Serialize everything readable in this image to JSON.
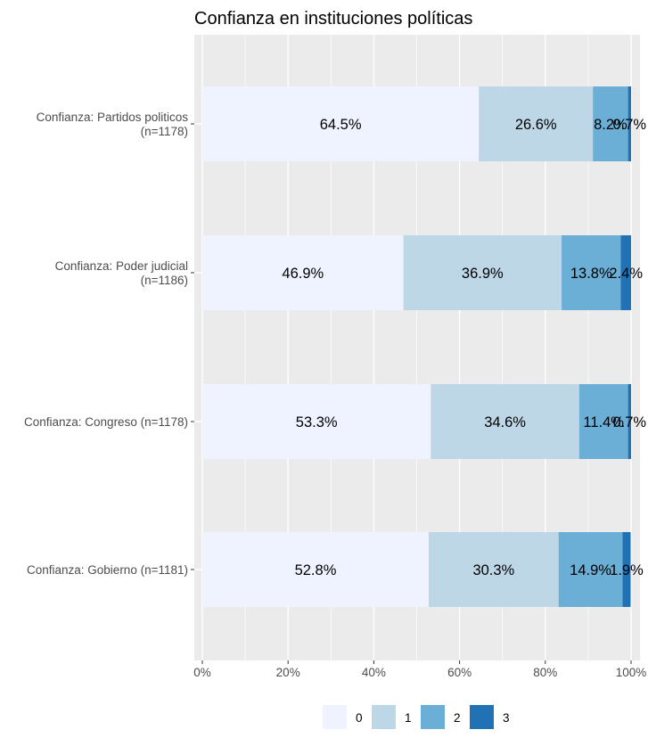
{
  "chart_data": {
    "type": "bar",
    "orientation": "horizontal",
    "stacked": true,
    "title": "Confianza en instituciones políticas",
    "xlabel": "",
    "ylabel": "",
    "xlim": [
      0,
      100
    ],
    "x_ticks": [
      "0%",
      "20%",
      "40%",
      "60%",
      "80%",
      "100%"
    ],
    "grid": true,
    "legend_position": "bottom",
    "categories": [
      [
        "Confianza: Partidos politicos",
        "(n=1178)"
      ],
      [
        "Confianza: Poder judicial",
        "(n=1186)"
      ],
      [
        "Confianza: Congreso (n=1178)"
      ],
      [
        "Confianza: Gobierno (n=1181)"
      ]
    ],
    "series": [
      {
        "name": "0",
        "color": "#eff3ff",
        "values": [
          64.5,
          46.9,
          53.3,
          52.8
        ],
        "labels": [
          "64.5%",
          "46.9%",
          "53.3%",
          "52.8%"
        ]
      },
      {
        "name": "1",
        "color": "#bdd7e7",
        "values": [
          26.6,
          36.9,
          34.6,
          30.3
        ],
        "labels": [
          "26.6%",
          "36.9%",
          "34.6%",
          "30.3%"
        ]
      },
      {
        "name": "2",
        "color": "#6baed6",
        "values": [
          8.2,
          13.8,
          11.4,
          14.9
        ],
        "labels": [
          "8.2%",
          "13.8%",
          "11.4%",
          "14.9%"
        ]
      },
      {
        "name": "3",
        "color": "#2171b5",
        "values": [
          0.7,
          2.4,
          0.7,
          1.9
        ],
        "labels": [
          "0.7%",
          "2.4%",
          "0.7%",
          "1.9%"
        ]
      }
    ]
  }
}
